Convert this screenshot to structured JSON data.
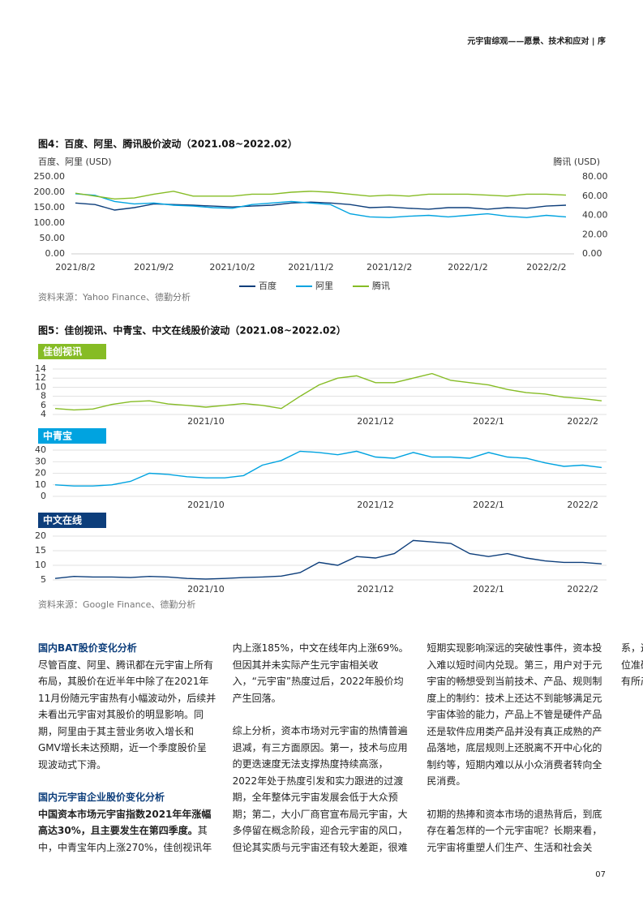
{
  "header": {
    "title": "元宇宙综观——愿景、技术和应对 | 序"
  },
  "page_number": "07",
  "chart_data": [
    {
      "type": "line",
      "title": "图4：百度、阿里、腾讯股价波动（2021.08~2022.02）",
      "ylabel": "百度、阿里 (USD)",
      "y2label": "腾讯 (USD)",
      "categories": [
        "2021/8/2",
        null,
        null,
        null,
        "2021/9/2",
        null,
        null,
        null,
        "2021/10/2",
        null,
        null,
        null,
        "2021/11/2",
        null,
        null,
        null,
        "2021/12/2",
        null,
        null,
        null,
        "2022/1/2",
        null,
        null,
        null,
        "2022/2/2",
        null
      ],
      "series": [
        {
          "name": "百度",
          "color": "#0d3e7b",
          "values": [
            165,
            160,
            142,
            150,
            162,
            160,
            158,
            155,
            152,
            155,
            158,
            165,
            168,
            165,
            160,
            150,
            152,
            148,
            145,
            150,
            150,
            145,
            150,
            148,
            155,
            158
          ]
        },
        {
          "name": "阿里",
          "color": "#00a3e0",
          "values": [
            195,
            190,
            170,
            162,
            165,
            158,
            155,
            150,
            148,
            160,
            165,
            170,
            165,
            160,
            130,
            120,
            118,
            122,
            125,
            120,
            125,
            130,
            122,
            118,
            125,
            120
          ]
        },
        {
          "name": "腾讯",
          "color": "#86bc25",
          "axis": "y2",
          "values": [
            63,
            60,
            57,
            58,
            62,
            65,
            60,
            60,
            60,
            62,
            62,
            64,
            65,
            64,
            62,
            60,
            61,
            60,
            62,
            62,
            62,
            61,
            60,
            62,
            62,
            61
          ]
        }
      ],
      "ylim": [
        0,
        250
      ],
      "yticks": [
        {
          "value": 0,
          "label": "0.00"
        },
        {
          "value": 50,
          "label": "50.00"
        },
        {
          "value": 100,
          "label": "100.00"
        },
        {
          "value": 150,
          "label": "150.00"
        },
        {
          "value": 200,
          "label": "200.00"
        },
        {
          "value": 250,
          "label": "250.00"
        }
      ],
      "y2lim": [
        0,
        80
      ],
      "y2ticks": [
        {
          "value": 0,
          "label": "0.00"
        },
        {
          "value": 20,
          "label": "20.00"
        },
        {
          "value": 40,
          "label": "40.00"
        },
        {
          "value": 60,
          "label": "60.00"
        },
        {
          "value": 80,
          "label": "80.00"
        }
      ],
      "grid": false,
      "legend": "bottom",
      "source": "资料来源：Yahoo Finance、德勤分析"
    },
    {
      "type": "line",
      "title": "图5：佳创视讯、中青宝、中文在线股价波动（2021.08~2022.02）",
      "panel_label": "佳创视讯",
      "color": "#86bc25",
      "categories": [
        null,
        null,
        null,
        null,
        null,
        null,
        null,
        null,
        "2021/10",
        null,
        null,
        null,
        null,
        null,
        null,
        null,
        null,
        "2021/12",
        null,
        null,
        null,
        null,
        null,
        "2022/1",
        null,
        null,
        null,
        null,
        "2022/2",
        null
      ],
      "values": [
        5.3,
        5.0,
        5.2,
        6.2,
        6.8,
        7.0,
        6.3,
        6.0,
        5.6,
        6.0,
        6.4,
        6.0,
        5.3,
        8.0,
        10.5,
        12.0,
        12.5,
        11.0,
        11.0,
        12.0,
        13.0,
        11.5,
        11.0,
        10.5,
        9.5,
        8.8,
        8.5,
        7.8,
        7.5,
        7.0
      ],
      "ylim": [
        4,
        14
      ],
      "yticks": [
        4,
        6,
        8,
        10,
        12,
        14
      ],
      "grid": true
    },
    {
      "type": "line",
      "panel_label": "中青宝",
      "color": "#00a3e0",
      "categories": [
        null,
        null,
        null,
        null,
        null,
        null,
        null,
        null,
        "2021/10",
        null,
        null,
        null,
        null,
        null,
        null,
        null,
        null,
        "2021/12",
        null,
        null,
        null,
        null,
        null,
        "2022/1",
        null,
        null,
        null,
        null,
        "2022/2",
        null
      ],
      "values": [
        10,
        9,
        9,
        10,
        13,
        20,
        19,
        17,
        16,
        16,
        18,
        27,
        31,
        39,
        38,
        36,
        39,
        34,
        33,
        38,
        34,
        34,
        33,
        38,
        34,
        33,
        29,
        26,
        27,
        25
      ],
      "ylim": [
        0,
        40
      ],
      "yticks": [
        0,
        10,
        20,
        30,
        40
      ],
      "grid": true
    },
    {
      "type": "line",
      "panel_label": "中文在线",
      "color": "#0d3e7b",
      "categories": [
        null,
        null,
        null,
        null,
        null,
        null,
        null,
        null,
        "2021/10",
        null,
        null,
        null,
        null,
        null,
        null,
        null,
        null,
        "2021/12",
        null,
        null,
        null,
        null,
        null,
        "2022/1",
        null,
        null,
        null,
        null,
        "2022/2",
        null
      ],
      "values": [
        5.5,
        6.2,
        6.0,
        6.0,
        5.8,
        6.2,
        6.0,
        5.5,
        5.3,
        5.5,
        5.8,
        6.0,
        6.3,
        7.5,
        11.0,
        10.0,
        13.0,
        12.5,
        14.0,
        18.5,
        18.0,
        17.5,
        14.0,
        13.0,
        14.0,
        12.5,
        11.5,
        11.0,
        11.0,
        10.5
      ],
      "ylim": [
        5,
        20
      ],
      "yticks": [
        5,
        10,
        15,
        20
      ],
      "grid": true,
      "source": "资料来源：Google Finance、德勤分析"
    }
  ],
  "body": {
    "heading_1": "国内BAT股价变化分析",
    "paragraph_1": "尽管百度、阿里、腾讯都在元宇宙上所有布局，其股价在近半年中除了在2021年11月份随元宇宙热有小幅波动外，后续并未看出元宇宙对其股价的明显影响。同期，阿里由于其主营业务收入增长和GMV增长未达预期，近一个季度股价呈现波动式下滑。",
    "heading_2": "国内元宇宙企业股价变化分析",
    "paragraph_2_lead": "中国资本市场元宇宙指数2021年年涨幅高达30%，且主要发生在第四季度。",
    "paragraph_2": "其中，中青宝年内上涨270%，佳创视讯年内上涨185%，中文在线年内上涨69%。但因其并未实际产生元宇宙相关收入，“元宇宙”热度过后，2022年股价均产生回落。",
    "paragraph_3": "综上分析，资本市场对元宇宙的热情普遍退减，有三方面原因。第一，技术与应用的更迭速度无法支撑热度持续高涨，2022年处于热度引发和实力跟进的过渡期，全年整体元宇宙发展会低于大众预期；第二，大小厂商官宣布局元宇宙，大多停留在概念阶段，迎合元宇宙的风口，但论其实质与元宇宙还有较大差距，很难短期实现影响深远的突破性事件，资本投入难以短时间内兑现。第三，用户对于元宇宙的畅想受到当前技术、产品、规则制度上的制约：技术上还达不到能够满足元宇宙体验的能力，产品上不管是硬件产品还是软件应用类产品并没有真正成熟的产品落地，底层规则上还脱离不开中心化的制约等，短期内难以从小众消费者转向全民消费。",
    "paragraph_4": "初期的热捧和资本市场的退热背后，到底存在着怎样的一个元宇宙呢？长期来看，元宇宙将重塑人们生产、生活和社会关系，这是大方向。热度退却之后，那些定位准确、继续深耕、能力出众的团队必将有所产出，重新引起新的热度。"
  }
}
